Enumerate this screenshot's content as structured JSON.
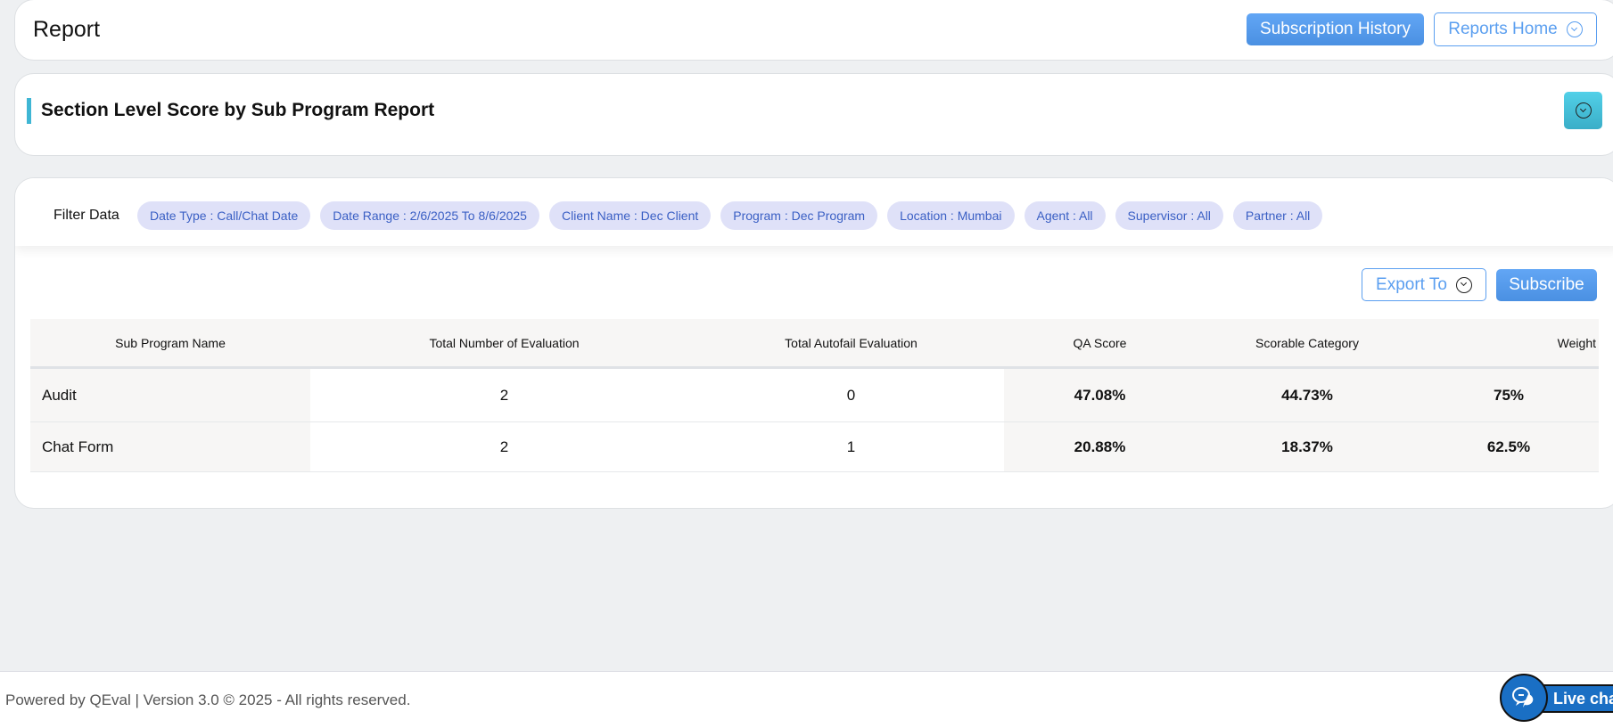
{
  "header": {
    "title": "Report",
    "subscription_history": "Subscription History",
    "reports_home": "Reports Home"
  },
  "section": {
    "title": "Section Level Score by Sub Program Report",
    "accent": "#3fb6d4"
  },
  "filters": {
    "label": "Filter Data",
    "chips": [
      "Date Type : Call/Chat Date",
      "Date Range : 2/6/2025 To 8/6/2025",
      "Client Name : Dec Client",
      "Program : Dec Program",
      "Location : Mumbai",
      "Agent : All",
      "Supervisor : All",
      "Partner : All"
    ]
  },
  "actions": {
    "export": "Export To",
    "subscribe": "Subscribe"
  },
  "table": {
    "columns": [
      "Sub Program Name",
      "Total Number of Evaluation",
      "Total Autofail Evaluation",
      "QA Score",
      "Scorable Category",
      "Weight"
    ],
    "rows": [
      [
        "Audit",
        "2",
        "0",
        "47.08%",
        "44.73%",
        "75%"
      ],
      [
        "Chat Form",
        "2",
        "1",
        "20.88%",
        "18.37%",
        "62.5%"
      ]
    ]
  },
  "footer": {
    "text": "Powered by QEval | Version 3.0 © 2025 - All rights reserved.",
    "live_chat": "Live chat"
  },
  "colors": {
    "primary": "#4a90e2",
    "chip_bg": "#dfe1f8",
    "chip_text": "#3a5fc4",
    "live_chat": "#1a6fc4"
  }
}
